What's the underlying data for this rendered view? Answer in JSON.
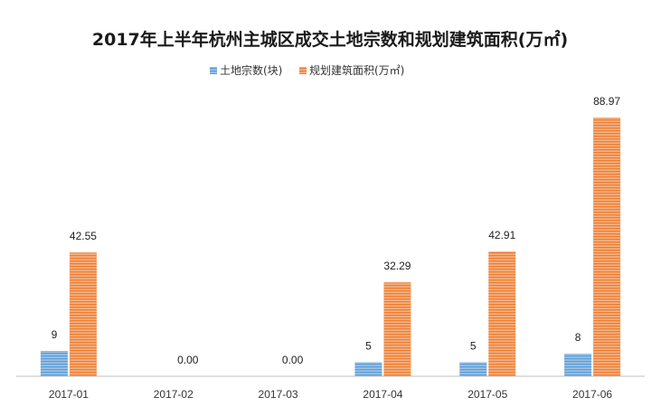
{
  "chart_data": {
    "type": "bar",
    "title": "2017年上半年杭州主城区成交土地宗数和规划建筑面积(万㎡)",
    "xlabel": "",
    "ylabel": "",
    "categories": [
      "2017-01",
      "2017-02",
      "2017-03",
      "2017-04",
      "2017-05",
      "2017-06"
    ],
    "series": [
      {
        "name": "土地宗数(块)",
        "values": [
          9,
          0,
          0,
          5,
          5,
          8
        ],
        "labels": [
          "9",
          "",
          "",
          "5",
          "5",
          "8"
        ],
        "color": "#5b9bd5"
      },
      {
        "name": "规划建筑面积(万㎡)",
        "values": [
          42.55,
          0,
          0,
          32.29,
          42.91,
          88.97
        ],
        "labels": [
          "42.55",
          "0.00",
          "0.00",
          "32.29",
          "42.91",
          "88.97"
        ],
        "color": "#ed7d31"
      }
    ],
    "ylim": [
      0,
      90
    ],
    "grid": false,
    "legend": "top-center"
  }
}
